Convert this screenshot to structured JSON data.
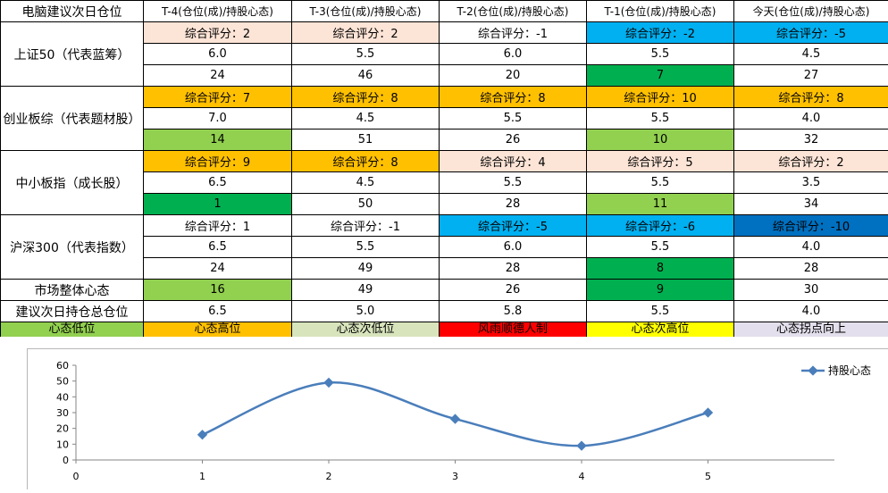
{
  "header": {
    "title": "电脑建议次日仓位",
    "columns": [
      "T-4(仓位(成)/持股心态)",
      "T-3(仓位(成)/持股心态)",
      "T-2(仓位(成)/持股心态)",
      "T-1(仓位(成)/持股心态)",
      "今天(仓位(成)/持股心态)"
    ]
  },
  "colors": {
    "peach": "#fce4d6",
    "orange": "#ffc000",
    "sky": "#00b0f0",
    "blue": "#0070c0",
    "green": "#00b050",
    "lightgreen": "#92d050",
    "palegreen": "#d8e4bc",
    "red": "#ff0000",
    "yellow": "#ffff00",
    "lavender": "#e4dfec",
    "series": "#4a7ebb"
  },
  "indices": [
    {
      "name": "上证50（代表蓝筹）",
      "score": [
        "综合评分：2",
        "综合评分：2",
        "综合评分：-1",
        "综合评分：-2",
        "综合评分：-5"
      ],
      "score_bg": [
        "peach",
        "peach",
        "",
        "sky",
        "sky"
      ],
      "position": [
        "6.0",
        "5.5",
        "6.0",
        "5.5",
        "4.5"
      ],
      "mood": [
        "24",
        "46",
        "20",
        "7",
        "27"
      ],
      "mood_bg": [
        "",
        "",
        "",
        "green",
        ""
      ]
    },
    {
      "name": "创业板综（代表题材股）",
      "score": [
        "综合评分：7",
        "综合评分：8",
        "综合评分：8",
        "综合评分：10",
        "综合评分：8"
      ],
      "score_bg": [
        "orange",
        "orange",
        "orange",
        "orange",
        "orange"
      ],
      "position": [
        "7.0",
        "4.5",
        "5.5",
        "5.5",
        "4.0"
      ],
      "mood": [
        "14",
        "51",
        "26",
        "10",
        "32"
      ],
      "mood_bg": [
        "lightgreen",
        "",
        "",
        "lightgreen",
        ""
      ]
    },
    {
      "name": "中小板指（成长股）",
      "score": [
        "综合评分：9",
        "综合评分：8",
        "综合评分：4",
        "综合评分：5",
        "综合评分：2"
      ],
      "score_bg": [
        "orange",
        "orange",
        "peach",
        "peach",
        "peach"
      ],
      "position": [
        "6.5",
        "4.5",
        "5.5",
        "5.5",
        "3.5"
      ],
      "mood": [
        "1",
        "50",
        "28",
        "11",
        "34"
      ],
      "mood_bg": [
        "green",
        "",
        "",
        "lightgreen",
        ""
      ]
    },
    {
      "name": "沪深300（代表指数）",
      "score": [
        "综合评分：1",
        "综合评分：-1",
        "综合评分：-5",
        "综合评分：-6",
        "综合评分：-10"
      ],
      "score_bg": [
        "",
        "",
        "sky",
        "sky",
        "blue"
      ],
      "position": [
        "6.5",
        "5.5",
        "6.0",
        "5.5",
        "4.0"
      ],
      "mood": [
        "24",
        "49",
        "28",
        "8",
        "28"
      ],
      "mood_bg": [
        "",
        "",
        "",
        "green",
        ""
      ]
    }
  ],
  "market": {
    "label": "市场整体心态",
    "values": [
      "16",
      "49",
      "26",
      "9",
      "30"
    ],
    "bg": [
      "lightgreen",
      "",
      "",
      "green",
      ""
    ]
  },
  "suggest": {
    "label": "建议次日持仓总仓位",
    "values": [
      "6.5",
      "5.0",
      "5.8",
      "5.5",
      "4.0"
    ]
  },
  "legend": [
    {
      "label": "心态低位",
      "color": "lightgreen"
    },
    {
      "label": "心态高位",
      "color": "orange"
    },
    {
      "label": "心态次低位",
      "color": "palegreen"
    },
    {
      "label": "风雨顺德人制",
      "color": "red"
    },
    {
      "label": "心态次高位",
      "color": "yellow"
    },
    {
      "label": "心态拐点向上",
      "color": "lavender"
    }
  ],
  "chart_data": {
    "type": "line",
    "x": [
      1,
      2,
      3,
      4,
      5
    ],
    "series": [
      {
        "name": "持股心态",
        "values": [
          16,
          49,
          26,
          9,
          30
        ]
      }
    ],
    "xlim": [
      0,
      6
    ],
    "ylim": [
      0,
      60
    ],
    "xticks": [
      0,
      1,
      2,
      3,
      4,
      5
    ],
    "yticks": [
      0,
      10,
      20,
      30,
      40,
      50,
      60
    ],
    "smooth": true,
    "grid": false,
    "legend_position": "top-right"
  }
}
